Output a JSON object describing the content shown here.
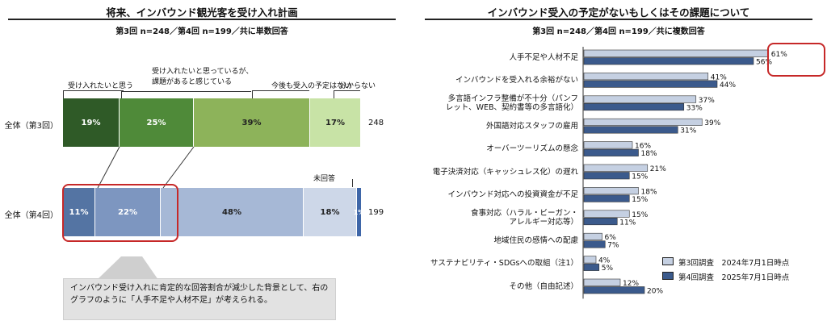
{
  "left": {
    "title": "将来、インバウンド観光客を受け入れ計画",
    "subtitle": "第3回 n=248／第4回 n=199／共に単数回答",
    "categories": [
      {
        "label": "受け入れたいと思う"
      },
      {
        "label": "受け入れたいと思っているが、\n課題があると感じている"
      },
      {
        "label": "今後も受入の予定はない"
      },
      {
        "label": "分からない"
      }
    ],
    "no_answer_label": "未回答",
    "rows": [
      {
        "label": "全体（第3回）",
        "total": "248",
        "values": [
          19,
          25,
          39,
          17
        ],
        "value_labels": [
          "19%",
          "25%",
          "39%",
          "17%"
        ],
        "colors": [
          "#2f5a27",
          "#4f8a39",
          "#8db35a",
          "#c8e3a6"
        ]
      },
      {
        "label": "全体（第4回）",
        "total": "199",
        "values": [
          11,
          22,
          48,
          18,
          1
        ],
        "value_labels": [
          "11%",
          "22%",
          "48%",
          "18%",
          "1%"
        ],
        "colors": [
          "#5474a3",
          "#7d96c0",
          "#a6b8d6",
          "#cdd7e8",
          "#3e66a8"
        ]
      }
    ],
    "note": "インバウンド受け入れに肯定的な回答割合が減少した背景として、右のグラフのように「人手不足や人材不足」が考えられる。"
  },
  "chart_data": {
    "type": "bar",
    "orientation": "horizontal",
    "title": "インバウンド受入の予定がないもしくはその課題について",
    "subtitle": "第3回 n=248／第4回 n=199／共に複数回答",
    "categories": [
      "人手不足や人材不足",
      "インバウンドを受入れる余裕がない",
      "多言語インフラ整備が不十分（パンフレット、WEB、契約書等の多言語化）",
      "外国語対応スタッフの雇用",
      "オーバーツーリズムの懸念",
      "電子決済対応（キャッシュレス化）の遅れ",
      "インバウンド対応への投資資金が不足",
      "食事対応（ハラル・ビーガン・アレルギー対応等）",
      "地域住民の感情への配慮",
      "サステナビリティ・SDGsへの取組（注1）",
      "その他（自由記述）"
    ],
    "category_lines": [
      [
        "人手不足や人材不足"
      ],
      [
        "インバウンドを受入れる余裕がない"
      ],
      [
        "多言語インフラ整備が不十分（パンフ",
        "レット、WEB、契約書等の多言語化）"
      ],
      [
        "外国語対応スタッフの雇用"
      ],
      [
        "オーバーツーリズムの懸念"
      ],
      [
        "電子決済対応（キャッシュレス化）の遅れ"
      ],
      [
        "インバウンド対応への投資資金が不足"
      ],
      [
        "食事対応（ハラル・ビーガン・",
        "アレルギー対応等）"
      ],
      [
        "地域住民の感情への配慮"
      ],
      [
        "サステナビリティ・SDGsへの取組（注1）"
      ],
      [
        "その他（自由記述）"
      ]
    ],
    "series": [
      {
        "name": "第3回調査　2024年7月1日時点",
        "color": "#c5d0e2",
        "values": [
          61,
          41,
          37,
          39,
          16,
          21,
          18,
          15,
          6,
          4,
          12
        ]
      },
      {
        "name": "第4回調査　2025年7月1日時点",
        "color": "#3b5a8c",
        "values": [
          56,
          44,
          33,
          31,
          18,
          15,
          15,
          11,
          7,
          5,
          20
        ]
      }
    ],
    "value_suffix": "%",
    "xlim": [
      0,
      100
    ]
  }
}
